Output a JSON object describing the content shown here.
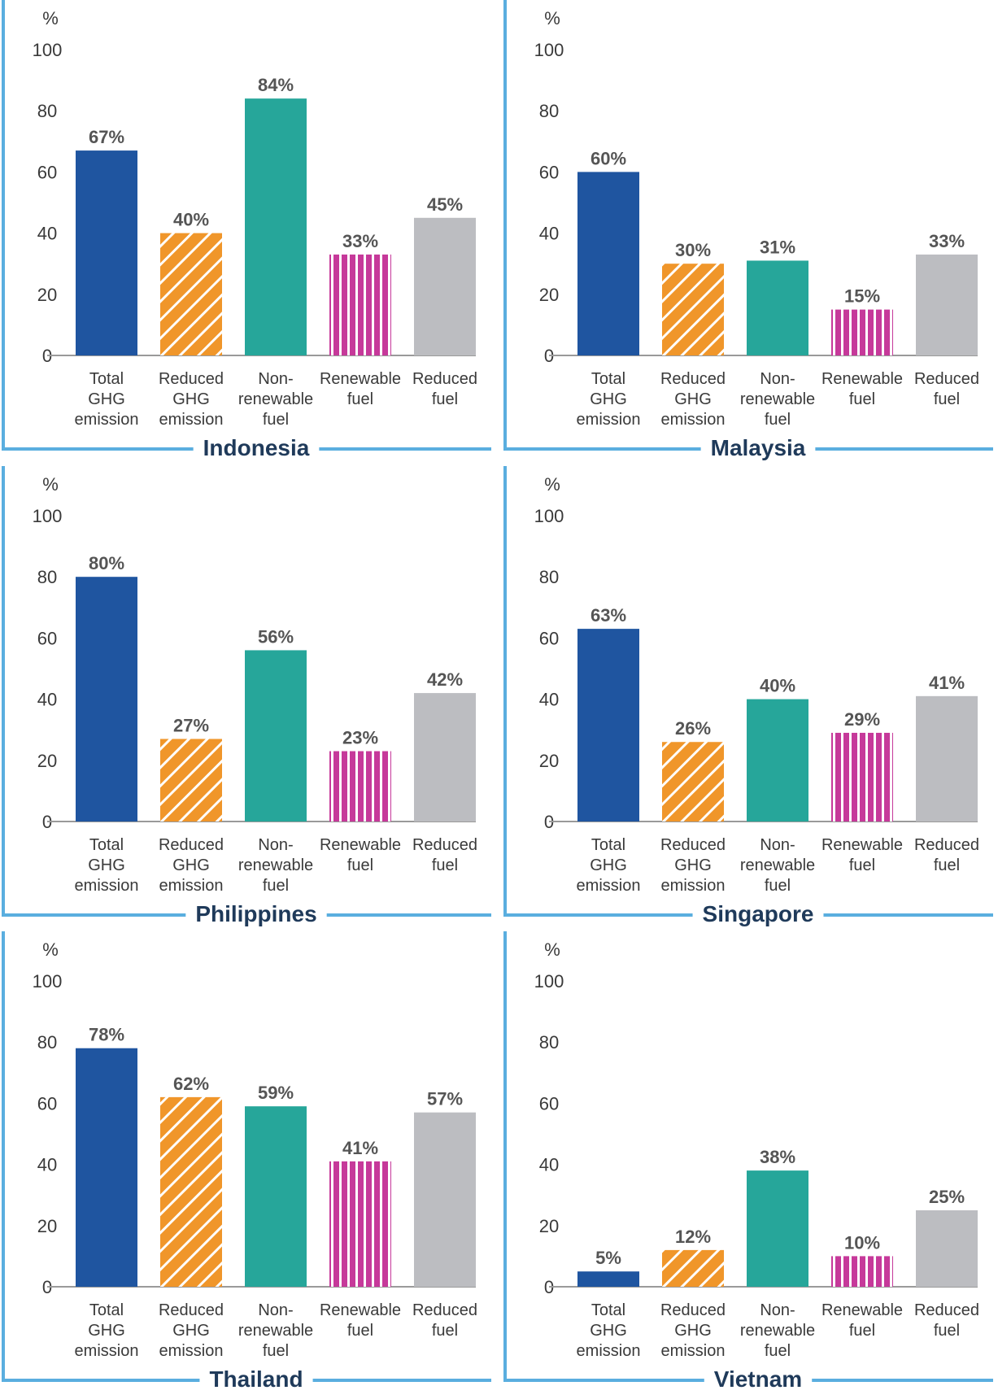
{
  "colors": {
    "frame": "#5aaedf",
    "axis": "#9a9a9a",
    "text": "#3a3a3a",
    "value_label": "#555555",
    "title": "#1f3a5a",
    "bars": [
      "#1f55a0",
      "#f0962a",
      "#26a69a",
      "#c6399a",
      "#bcbdc1"
    ],
    "patterns": [
      "solid",
      "diagonal-hatch",
      "solid",
      "vertical-stripes",
      "solid"
    ]
  },
  "chart_data": [
    {
      "type": "bar",
      "title": "Indonesia",
      "ylabel": "%",
      "ylim": [
        0,
        100
      ],
      "yticks": [
        0,
        20,
        40,
        60,
        80,
        100
      ],
      "categories": [
        "Total GHG emission",
        "Reduced GHG emission",
        "Non-renewable fuel",
        "Renewable fuel",
        "Reduced fuel"
      ],
      "category_lines": [
        [
          "Total",
          "GHG",
          "emission"
        ],
        [
          "Reduced",
          "GHG",
          "emission"
        ],
        [
          "Non-",
          "renewable",
          "fuel"
        ],
        [
          "Renewable",
          "fuel"
        ],
        [
          "Reduced",
          "fuel"
        ]
      ],
      "values": [
        67,
        40,
        84,
        33,
        45
      ],
      "labels": [
        "67%",
        "40%",
        "84%",
        "33%",
        "45%"
      ],
      "grid": false
    },
    {
      "type": "bar",
      "title": "Malaysia",
      "ylabel": "%",
      "ylim": [
        0,
        100
      ],
      "yticks": [
        0,
        20,
        40,
        60,
        80,
        100
      ],
      "categories": [
        "Total GHG emission",
        "Reduced GHG emission",
        "Non-renewable fuel",
        "Renewable fuel",
        "Reduced fuel"
      ],
      "category_lines": [
        [
          "Total",
          "GHG",
          "emission"
        ],
        [
          "Reduced",
          "GHG",
          "emission"
        ],
        [
          "Non-",
          "renewable",
          "fuel"
        ],
        [
          "Renewable",
          "fuel"
        ],
        [
          "Reduced",
          "fuel"
        ]
      ],
      "values": [
        60,
        30,
        31,
        15,
        33
      ],
      "labels": [
        "60%",
        "30%",
        "31%",
        "15%",
        "33%"
      ],
      "grid": false
    },
    {
      "type": "bar",
      "title": "Philippines",
      "ylabel": "%",
      "ylim": [
        0,
        100
      ],
      "yticks": [
        0,
        20,
        40,
        60,
        80,
        100
      ],
      "categories": [
        "Total GHG emission",
        "Reduced GHG emission",
        "Non-renewable fuel",
        "Renewable fuel",
        "Reduced fuel"
      ],
      "category_lines": [
        [
          "Total",
          "GHG",
          "emission"
        ],
        [
          "Reduced",
          "GHG",
          "emission"
        ],
        [
          "Non-",
          "renewable",
          "fuel"
        ],
        [
          "Renewable",
          "fuel"
        ],
        [
          "Reduced",
          "fuel"
        ]
      ],
      "values": [
        80,
        27,
        56,
        23,
        42
      ],
      "labels": [
        "80%",
        "27%",
        "56%",
        "23%",
        "42%"
      ],
      "grid": false
    },
    {
      "type": "bar",
      "title": "Singapore",
      "ylabel": "%",
      "ylim": [
        0,
        100
      ],
      "yticks": [
        0,
        20,
        40,
        60,
        80,
        100
      ],
      "categories": [
        "Total GHG emission",
        "Reduced GHG emission",
        "Non-renewable fuel",
        "Renewable fuel",
        "Reduced fuel"
      ],
      "category_lines": [
        [
          "Total",
          "GHG",
          "emission"
        ],
        [
          "Reduced",
          "GHG",
          "emission"
        ],
        [
          "Non-",
          "renewable",
          "fuel"
        ],
        [
          "Renewable",
          "fuel"
        ],
        [
          "Reduced",
          "fuel"
        ]
      ],
      "values": [
        63,
        26,
        40,
        29,
        41
      ],
      "labels": [
        "63%",
        "26%",
        "40%",
        "29%",
        "41%"
      ],
      "grid": false
    },
    {
      "type": "bar",
      "title": "Thailand",
      "ylabel": "%",
      "ylim": [
        0,
        100
      ],
      "yticks": [
        0,
        20,
        40,
        60,
        80,
        100
      ],
      "categories": [
        "Total GHG emission",
        "Reduced GHG emission",
        "Non-renewable fuel",
        "Renewable fuel",
        "Reduced fuel"
      ],
      "category_lines": [
        [
          "Total",
          "GHG",
          "emission"
        ],
        [
          "Reduced",
          "GHG",
          "emission"
        ],
        [
          "Non-",
          "renewable",
          "fuel"
        ],
        [
          "Renewable",
          "fuel"
        ],
        [
          "Reduced",
          "fuel"
        ]
      ],
      "values": [
        78,
        62,
        59,
        41,
        57
      ],
      "labels": [
        "78%",
        "62%",
        "59%",
        "41%",
        "57%"
      ],
      "grid": false
    },
    {
      "type": "bar",
      "title": "Vietnam",
      "ylabel": "%",
      "ylim": [
        0,
        100
      ],
      "yticks": [
        0,
        20,
        40,
        60,
        80,
        100
      ],
      "categories": [
        "Total GHG emission",
        "Reduced GHG emission",
        "Non-renewable fuel",
        "Renewable fuel",
        "Reduced fuel"
      ],
      "category_lines": [
        [
          "Total",
          "GHG",
          "emission"
        ],
        [
          "Reduced",
          "GHG",
          "emission"
        ],
        [
          "Non-",
          "renewable",
          "fuel"
        ],
        [
          "Renewable",
          "fuel"
        ],
        [
          "Reduced",
          "fuel"
        ]
      ],
      "values": [
        5,
        12,
        38,
        10,
        25
      ],
      "labels": [
        "5%",
        "12%",
        "38%",
        "10%",
        "25%"
      ],
      "grid": false
    }
  ]
}
